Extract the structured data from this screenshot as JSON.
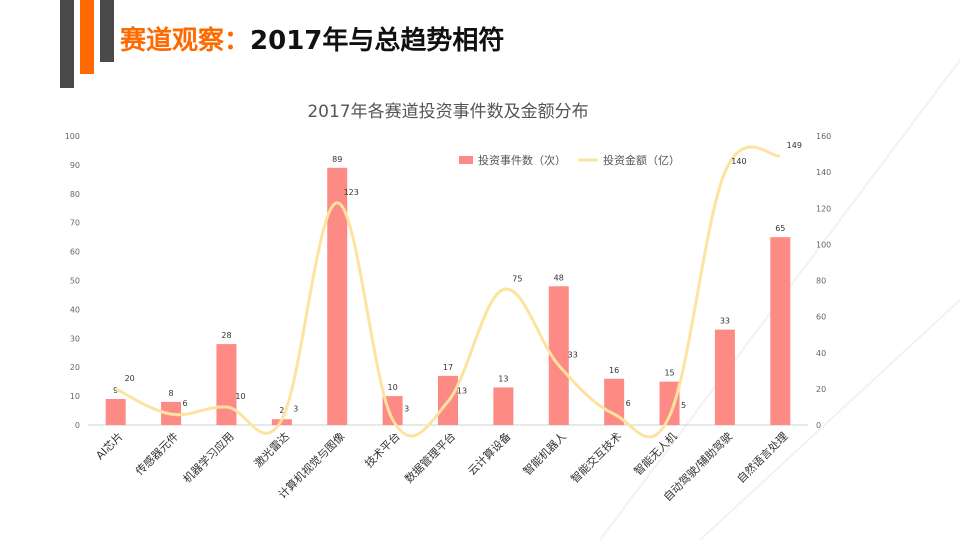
{
  "slide": {
    "title_highlight": "赛道观察：",
    "title_rest": "2017年与总趋势相符"
  },
  "colors": {
    "accent": "#ff6a00",
    "dark": "#4a4a4a",
    "bar": "#fe8a86",
    "line": "#fde3a0"
  },
  "chart_data": {
    "type": "bar",
    "title": "2017年各赛道投资事件数及金额分布",
    "categories": [
      "AI芯片",
      "传感器元件",
      "机器学习应用",
      "激光雷达",
      "计算机视觉与图像",
      "技术平台",
      "数据管理平台",
      "云计算设备",
      "智能机器人",
      "智能交互技术",
      "智能无人机",
      "自动驾驶/辅助驾驶",
      "自然语言处理"
    ],
    "series": [
      {
        "name": "投资事件数（次）",
        "type": "bar",
        "axis": "left",
        "values": [
          9,
          8,
          28,
          2,
          89,
          10,
          17,
          13,
          48,
          16,
          15,
          33,
          65
        ]
      },
      {
        "name": "投资金额（亿）",
        "type": "line",
        "axis": "right",
        "values": [
          20,
          6,
          10,
          3,
          123,
          3,
          13,
          75,
          33,
          6,
          5,
          140,
          149
        ]
      }
    ],
    "y_left": {
      "lim": [
        0,
        100
      ],
      "ticks": [
        0,
        10,
        20,
        30,
        40,
        50,
        60,
        70,
        80,
        90,
        100
      ]
    },
    "y_right": {
      "lim": [
        0,
        160
      ],
      "ticks": [
        0,
        20,
        40,
        60,
        80,
        100,
        120,
        140,
        160
      ]
    },
    "legend_position": "top-right",
    "grid": false
  }
}
